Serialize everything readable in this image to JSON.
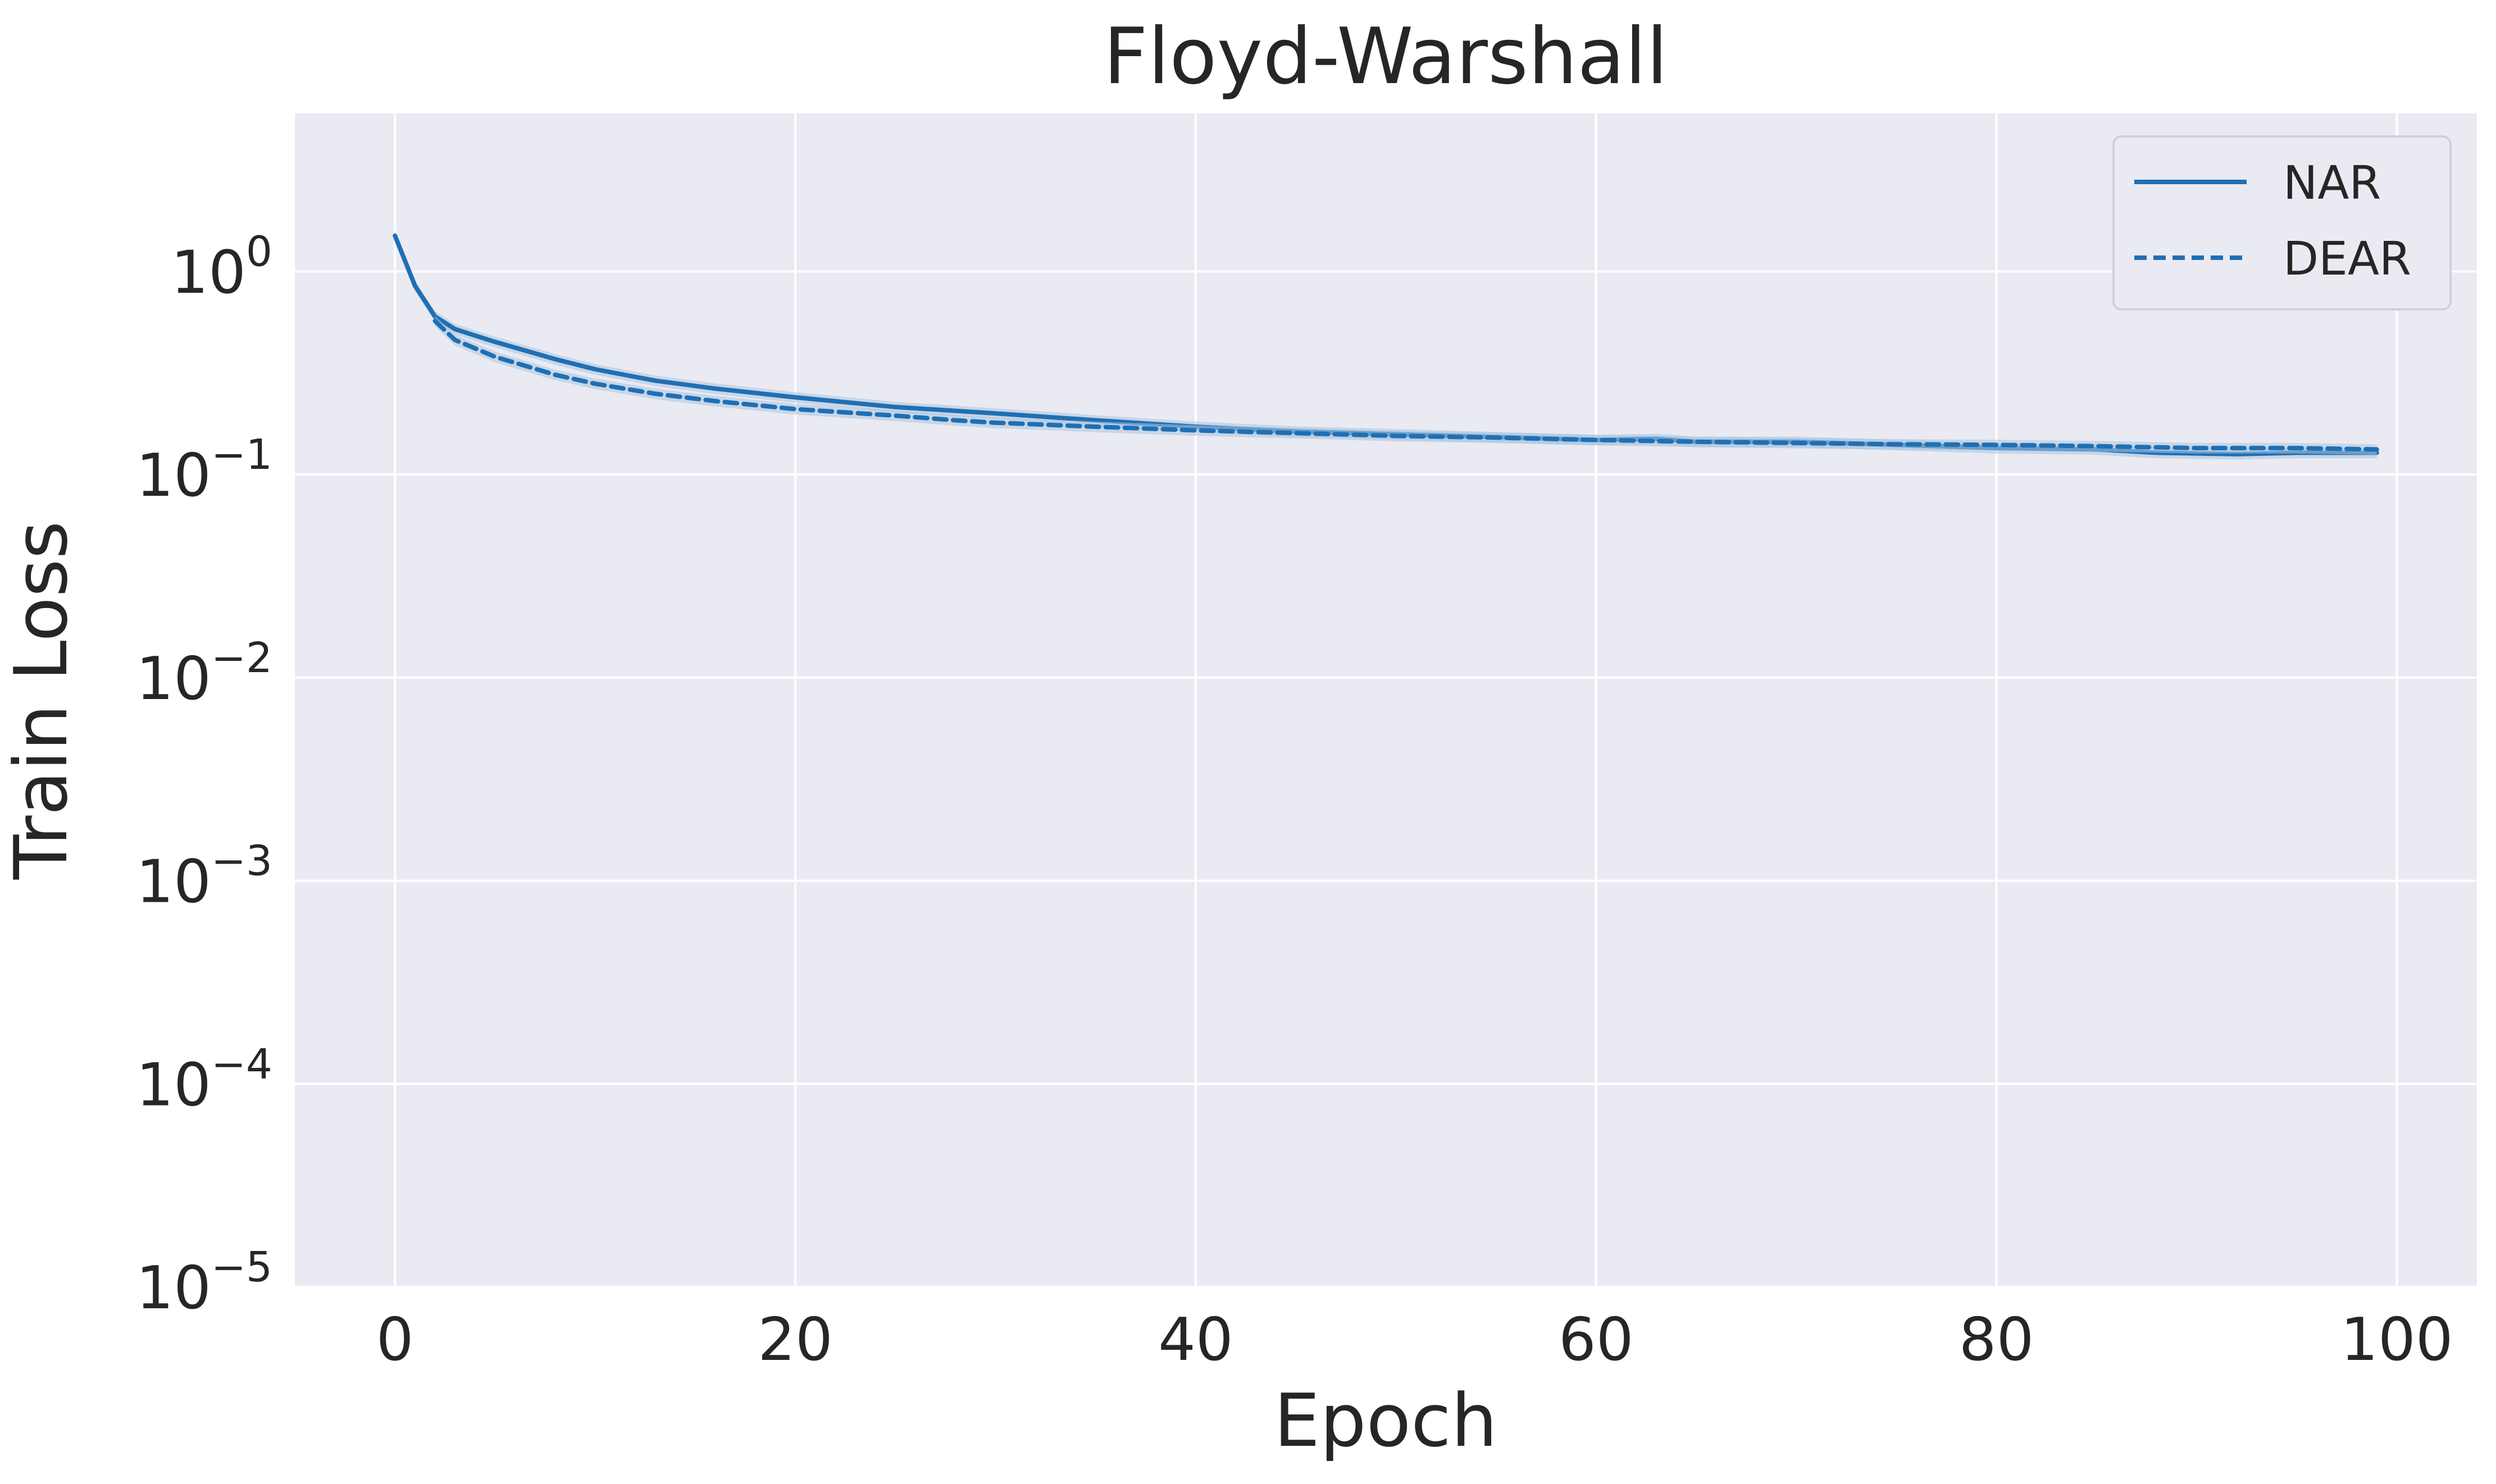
{
  "chart_data": {
    "type": "line",
    "title": "Floyd-Warshall",
    "xlabel": "Epoch",
    "ylabel": "Train Loss",
    "xlim": [
      -5,
      104
    ],
    "ylim": [
      1e-05,
      6
    ],
    "yscale": "log",
    "x_ticks": [
      0,
      20,
      40,
      60,
      80,
      100
    ],
    "y_ticks": [
      {
        "base": "10",
        "exp": "0",
        "value": 1
      },
      {
        "base": "10",
        "exp": "−1",
        "value": 0.1
      },
      {
        "base": "10",
        "exp": "−2",
        "value": 0.01
      },
      {
        "base": "10",
        "exp": "−3",
        "value": 0.001
      },
      {
        "base": "10",
        "exp": "−4",
        "value": 0.0001
      },
      {
        "base": "10",
        "exp": "−5",
        "value": 1e-05
      }
    ],
    "grid": true,
    "legend": {
      "position": "top-right"
    },
    "colors": {
      "background": "#EAEAF2",
      "grid": "#FFFFFF",
      "series": "#1F6FB4",
      "band": "#A9C4E0"
    },
    "series": [
      {
        "name": "NAR",
        "style": "solid",
        "x": [
          0,
          1,
          2,
          3,
          5,
          8,
          10,
          13,
          16,
          20,
          25,
          30,
          35,
          40,
          45,
          50,
          55,
          60,
          63,
          65,
          70,
          75,
          80,
          85,
          88,
          90,
          92,
          95,
          99
        ],
        "y": [
          1.5,
          0.85,
          0.6,
          0.52,
          0.45,
          0.37,
          0.33,
          0.29,
          0.265,
          0.24,
          0.215,
          0.2,
          0.185,
          0.172,
          0.163,
          0.158,
          0.153,
          0.148,
          0.15,
          0.145,
          0.145,
          0.14,
          0.135,
          0.133,
          0.128,
          0.127,
          0.126,
          0.128,
          0.128
        ]
      },
      {
        "name": "DEAR",
        "style": "dashed",
        "x": [
          2,
          3,
          5,
          8,
          10,
          13,
          16,
          20,
          25,
          28,
          30,
          35,
          40,
          45,
          50,
          55,
          60,
          65,
          70,
          75,
          80,
          85,
          90,
          95,
          99
        ],
        "y": [
          0.57,
          0.46,
          0.38,
          0.31,
          0.28,
          0.25,
          0.23,
          0.21,
          0.195,
          0.185,
          0.18,
          0.172,
          0.165,
          0.16,
          0.155,
          0.152,
          0.148,
          0.145,
          0.143,
          0.141,
          0.14,
          0.138,
          0.135,
          0.135,
          0.133
        ]
      }
    ]
  }
}
